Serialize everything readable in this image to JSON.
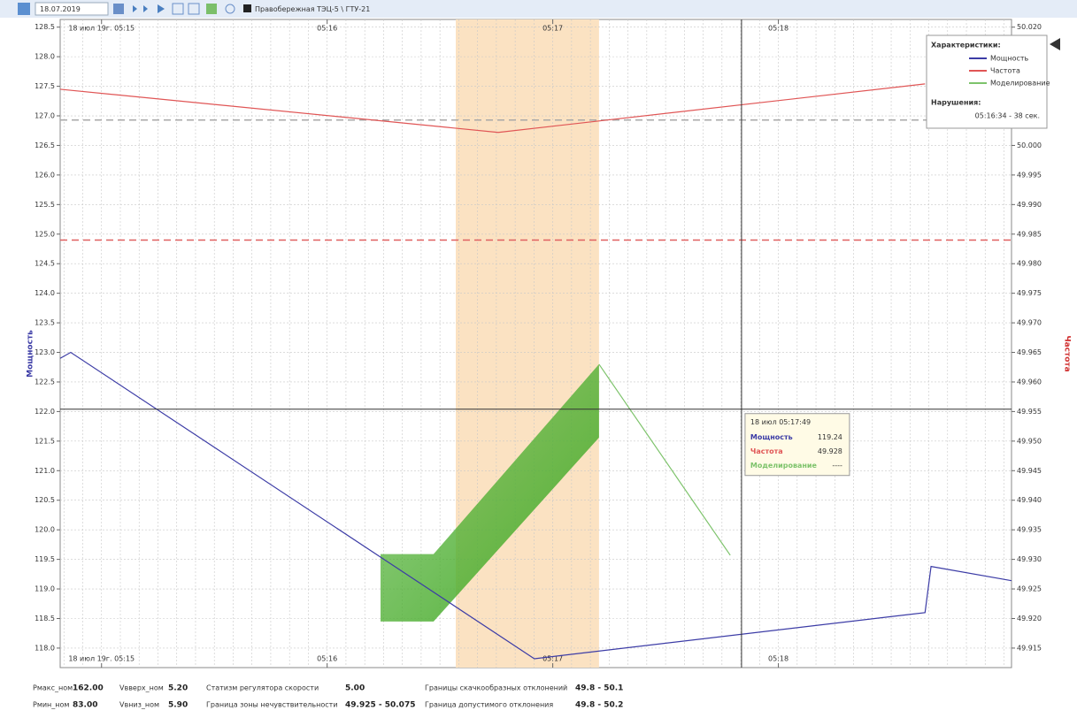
{
  "toolbar": {
    "date": "18.07.2019",
    "object": "Правобережная ТЭЦ-5 \\ ГТУ-21"
  },
  "chart_data": {
    "type": "line",
    "y_label": "Мощность",
    "y2_label": "Частота",
    "xlim": [
      -11,
      242
    ],
    "xticks": [
      {
        "value": 0,
        "label": "18 июл 19г. 05:15"
      },
      {
        "value": 60,
        "label": "05:16"
      },
      {
        "value": 120,
        "label": "05:17"
      },
      {
        "value": 180,
        "label": "05:18"
      }
    ],
    "xgrid": [
      -10,
      -5,
      0,
      5,
      10,
      15,
      20,
      25,
      30,
      35,
      40,
      45,
      50,
      55,
      60,
      65,
      70,
      75,
      80,
      85,
      90,
      95,
      100,
      105,
      110,
      115,
      120,
      125,
      130,
      135,
      140,
      145,
      150,
      155,
      160,
      165,
      170,
      175,
      180,
      185,
      190,
      195,
      200,
      205,
      210,
      215,
      220,
      225,
      230,
      235,
      240
    ],
    "ylim": [
      117.67,
      128.63
    ],
    "yticks": [
      {
        "value": 118,
        "label": "118.0"
      },
      118.5,
      {
        "value": 119,
        "label": "119.0"
      },
      119.5,
      {
        "value": 120,
        "label": "120.0"
      },
      120.5,
      {
        "value": 121,
        "label": "121.0"
      },
      121.5,
      {
        "value": 122,
        "label": "122.0"
      },
      122.5,
      {
        "value": 123,
        "label": "123.0"
      },
      123.5,
      {
        "value": 124,
        "label": "124.0"
      },
      124.5,
      {
        "value": 125,
        "label": "125.0"
      },
      125.5,
      {
        "value": 126,
        "label": "126.0"
      },
      126.5,
      {
        "value": 127,
        "label": "127.0"
      },
      127.5,
      {
        "value": 128,
        "label": "128.0"
      },
      128.5
    ],
    "y2lim": [
      49.9117,
      50.0213
    ],
    "y2ticks": [
      49.915,
      {
        "value": 49.92,
        "label": "49.920"
      },
      49.925,
      {
        "value": 49.93,
        "label": "49.930"
      },
      49.935,
      {
        "value": 49.94,
        "label": "49.940"
      },
      49.945,
      {
        "value": 49.95,
        "label": "49.950"
      },
      49.955,
      {
        "value": 49.96,
        "label": "49.960"
      },
      49.965,
      {
        "value": 49.97,
        "label": "49.970"
      },
      49.975,
      {
        "value": 49.98,
        "label": "49.980"
      },
      49.985,
      {
        "value": 49.99,
        "label": "49.990"
      },
      49.995,
      {
        "value": 50,
        "label": "50.000"
      },
      50.005,
      {
        "value": 50.01,
        "label": "50.010"
      },
      50.015,
      {
        "value": 50.02,
        "label": "50.020"
      }
    ],
    "grid": true,
    "series": [
      {
        "name": "Мощность",
        "color": "#3c3ca6",
        "x": [
          -11,
          -8.2,
          115.1,
          219,
          220.6,
          242
        ],
        "values": [
          122.9,
          123.0,
          117.82,
          118.6,
          119.38,
          119.14
        ]
      },
      {
        "name": "Частота",
        "color": "#e05555",
        "axis": "y2",
        "x": [
          -11,
          105.5,
          219
        ],
        "values": [
          50.0095,
          50.0022,
          50.0104
        ]
      },
      {
        "name": "Моделирование",
        "color": "#7dc36b",
        "x": [
          132.3,
          167.2
        ],
        "values": [
          122.8,
          119.57
        ]
      }
    ],
    "band": {
      "color": "#4cae30",
      "x": [
        74.2,
        88.3,
        132.3
      ],
      "upper": [
        119.59,
        119.59,
        122.8
      ],
      "lower": [
        118.45,
        118.45,
        121.56
      ]
    },
    "highlight": {
      "color": "#fbe2c2",
      "from": 94.2,
      "to": 132.3
    },
    "reference_lines": [
      {
        "axis": "y2",
        "value": 50.0043,
        "color": "#a8a8a8"
      },
      {
        "axis": "y2",
        "value": 49.984,
        "color": "#e06060"
      }
    ],
    "crosshair": {
      "x": 170.2,
      "y": 122.04
    },
    "legend": {
      "position": "upper right",
      "title": "Характеристики:",
      "violations_title": "Нарушения:",
      "violations": [
        "05:16:34 - 38 сек."
      ]
    },
    "tooltip": {
      "title": "18 июл 05:17:49",
      "rows": [
        {
          "name": "Мощность",
          "value": "119.24"
        },
        {
          "name": "Частота",
          "value": "49.928"
        },
        {
          "name": "Моделирование",
          "value": "----"
        }
      ]
    }
  },
  "footer": [
    [
      {
        "label": "Pмакс_ном",
        "value": "162.00"
      },
      {
        "label": "Vвверх_ном",
        "value": "5.20"
      },
      {
        "label": "Статизм регулятора скорости",
        "value": "5.00"
      },
      {
        "label": "Границы скачкообразных отклонений",
        "value": "49.8 - 50.1"
      }
    ],
    [
      {
        "label": "Pмин_ном",
        "value": "83.00"
      },
      {
        "label": "Vвниз_ном",
        "value": "5.90"
      },
      {
        "label": "Граница зоны нечувствительности",
        "value": "49.925 - 50.075"
      },
      {
        "label": "Граница допустимого отклонения",
        "value": "49.8 - 50.2"
      }
    ]
  ]
}
